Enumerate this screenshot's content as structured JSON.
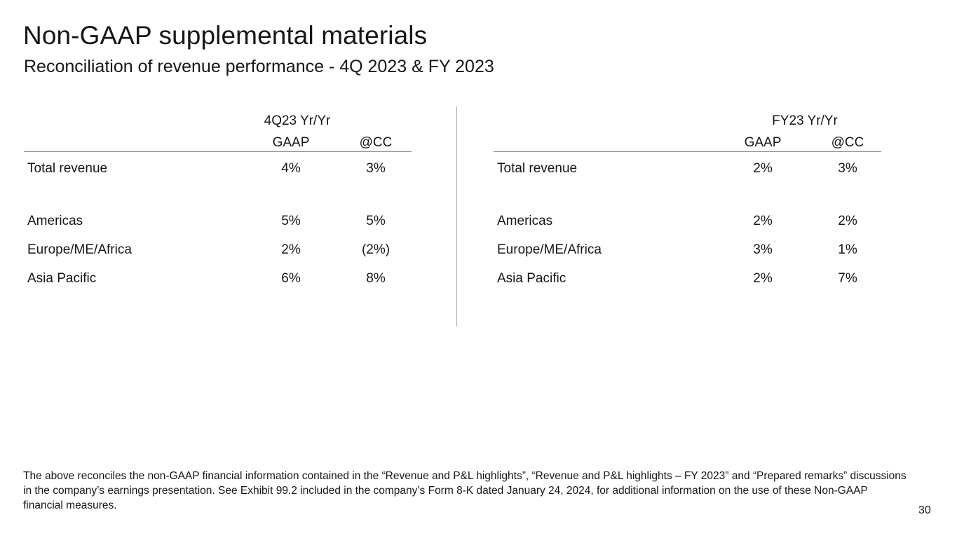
{
  "header": {
    "title": "Non-GAAP supplemental materials",
    "subtitle": "Reconciliation of revenue performance - 4Q 2023 & FY 2023"
  },
  "tables": [
    {
      "period": "4Q23 Yr/Yr",
      "columns": [
        "GAAP",
        "@CC"
      ],
      "rows": [
        {
          "label": "Total revenue",
          "gaap": "4%",
          "cc": "3%"
        },
        {
          "label": "Americas",
          "gaap": "5%",
          "cc": "5%"
        },
        {
          "label": "Europe/ME/Africa",
          "gaap": "2%",
          "cc": "(2%)"
        },
        {
          "label": "Asia Pacific",
          "gaap": "6%",
          "cc": "8%"
        }
      ]
    },
    {
      "period": "FY23 Yr/Yr",
      "columns": [
        "GAAP",
        "@CC"
      ],
      "rows": [
        {
          "label": "Total revenue",
          "gaap": "2%",
          "cc": "3%"
        },
        {
          "label": "Americas",
          "gaap": "2%",
          "cc": "2%"
        },
        {
          "label": "Europe/ME/Africa",
          "gaap": "3%",
          "cc": "1%"
        },
        {
          "label": "Asia Pacific",
          "gaap": "2%",
          "cc": "7%"
        }
      ]
    }
  ],
  "footnote": "The above reconciles the non-GAAP financial information contained in the “Revenue and P&L highlights”, “Revenue and P&L highlights – FY 2023” and “Prepared remarks” discussions in the company’s earnings presentation. See Exhibit 99.2 included in the company’s Form 8-K dated January 24, 2024, for additional information on the use of these Non-GAAP financial measures.",
  "page_number": "30"
}
